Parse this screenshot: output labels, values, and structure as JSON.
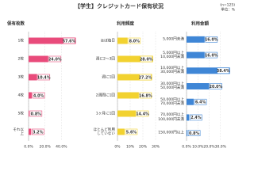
{
  "title": "【学生】クレジットカード保有状況",
  "sample_note": "(n=125)",
  "unit_note": "単位：%",
  "chart_data": [
    {
      "type": "barh",
      "title": "保有枚数",
      "categories": [
        "1枚",
        "2枚",
        "3枚",
        "4枚",
        "5枚",
        "それ以\n上"
      ],
      "values": [
        57.6,
        24.0,
        10.4,
        4.0,
        0.8,
        3.2
      ],
      "value_labels": [
        "57.6%",
        "24.0%",
        "10.4%",
        "4.0%",
        "0.8%",
        "3.2%"
      ],
      "color": "#e94b7b",
      "xlim": [
        0,
        60
      ],
      "xticks": [
        {
          "value": 0,
          "label": "0.0%"
        },
        {
          "value": 20,
          "label": "20.0%"
        },
        {
          "value": 40,
          "label": "40.0%"
        }
      ],
      "grid": true
    },
    {
      "type": "barh",
      "title": "利用頻度",
      "categories": [
        "ほぼ毎日",
        "週に2～3回",
        "週に1回",
        "2週間に1回",
        "1ヶ月に1回",
        "ほとんど利用\nしていない"
      ],
      "values": [
        8.0,
        28.0,
        27.2,
        16.8,
        14.4,
        5.6
      ],
      "value_labels": [
        "8.0%",
        "28.0%",
        "27.2%",
        "16.8%",
        "14.4%",
        "5.6%"
      ],
      "color": "#f2d230",
      "xlim": [
        0,
        30
      ],
      "xticks": [
        {
          "value": 0,
          "label": "0%"
        },
        {
          "value": 10,
          "label": "10%"
        },
        {
          "value": 20,
          "label": "20%"
        },
        {
          "value": 30,
          "label": "30%"
        }
      ],
      "grid": true
    },
    {
      "type": "barh",
      "title": "利用金額",
      "categories": [
        "5,000円未満",
        "5,000円以上\n10,000円未満",
        "10,000円以上\n30,000円未満",
        "30,000円以上\n50,000円未満",
        "50,000円以上\n70,000円未満",
        "70,000円以上\n100,000円未満",
        "150,000円以上"
      ],
      "values": [
        16.0,
        16.0,
        38.4,
        20.0,
        6.4,
        2.4,
        0.8
      ],
      "value_labels": [
        "16.0%",
        "16.0%",
        "38.4%",
        "20.0%",
        "6.4%",
        "2.4%",
        "0.8%"
      ],
      "color": "#3f86d6",
      "xlim": [
        0,
        40
      ],
      "xticks": [
        {
          "value": 0,
          "label": "0.0%"
        },
        {
          "value": 10,
          "label": "10.0%"
        },
        {
          "value": 20,
          "label": "20.0%"
        },
        {
          "value": 30,
          "label": "30.0%"
        }
      ],
      "grid": true
    }
  ]
}
